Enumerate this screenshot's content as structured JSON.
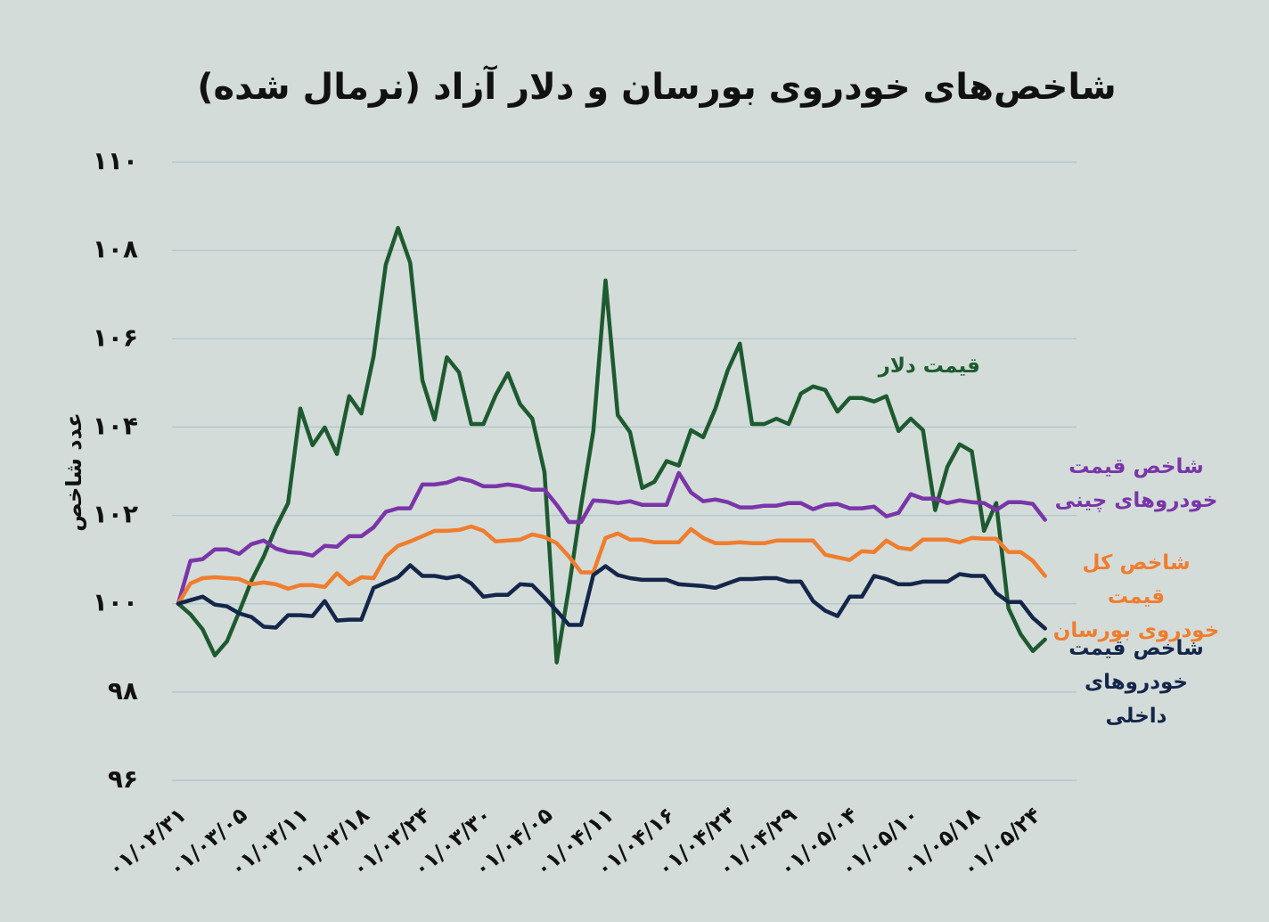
{
  "chart_data": {
    "type": "line",
    "title": "شاخص‌های خودروی بورسان و دلار آزاد (نرمال شده)",
    "y_label": "عدد شاخص",
    "ylim": [
      96,
      110
    ],
    "yticks": [
      {
        "value": 96,
        "label": "۹۶"
      },
      {
        "value": 98,
        "label": "۹۸"
      },
      {
        "value": 100,
        "label": "۱۰۰"
      },
      {
        "value": 102,
        "label": "۱۰۲"
      },
      {
        "value": 104,
        "label": "۱۰۴"
      },
      {
        "value": 106,
        "label": "۱۰۶"
      },
      {
        "value": 108,
        "label": "۱۰۸"
      },
      {
        "value": 110,
        "label": "۱۱۰"
      }
    ],
    "grid": true,
    "categories": [
      "۰۱/۰۲/۳۱",
      null,
      null,
      null,
      null,
      "۰۱/۰۳/۰۵",
      null,
      null,
      null,
      null,
      "۰۱/۰۳/۱۱",
      null,
      null,
      null,
      null,
      "۰۱/۰۳/۱۸",
      null,
      null,
      null,
      null,
      "۰۱/۰۳/۲۴",
      null,
      null,
      null,
      null,
      "۰۱/۰۳/۳۰",
      null,
      null,
      null,
      null,
      "۰۱/۰۴/۰۵",
      null,
      null,
      null,
      null,
      "۰۱/۰۴/۱۱",
      null,
      null,
      null,
      null,
      "۰۱/۰۴/۱۶",
      null,
      null,
      null,
      null,
      "۰۱/۰۴/۲۳",
      null,
      null,
      null,
      null,
      "۰۱/۰۴/۲۹",
      null,
      null,
      null,
      null,
      "۰۱/۰۵/۰۴",
      null,
      null,
      null,
      null,
      "۰۱/۰۵/۱۰",
      null,
      null,
      null,
      null,
      "۰۱/۰۵/۱۸",
      null,
      null,
      null,
      null,
      "۰۱/۰۵/۲۴",
      null
    ],
    "series": [
      {
        "name": "قیمت دلار",
        "color": "#1e5a30",
        "values": [
          100,
          99.76,
          99.42,
          98.83,
          99.15,
          99.82,
          100.52,
          101.07,
          101.73,
          102.28,
          104.42,
          103.59,
          103.99,
          103.39,
          104.7,
          104.31,
          105.6,
          107.68,
          108.51,
          107.72,
          105.06,
          104.17,
          105.58,
          105.24,
          104.07,
          104.07,
          104.72,
          105.22,
          104.52,
          104.19,
          102.98,
          98.67,
          100.36,
          102.22,
          103.91,
          107.32,
          104.27,
          103.89,
          102.62,
          102.76,
          103.23,
          103.13,
          103.93,
          103.77,
          104.42,
          105.28,
          105.89,
          104.07,
          104.07,
          104.19,
          104.07,
          104.76,
          104.92,
          104.84,
          104.35,
          104.66,
          104.66,
          104.58,
          104.7,
          103.91,
          104.19,
          103.93,
          102.12,
          103.1,
          103.61,
          103.45,
          101.65,
          102.28,
          99.9,
          99.31,
          98.93,
          99.19
        ]
      },
      {
        "name": "شاخص قیمت\nخودروهای چینی",
        "color": "#7a35a8",
        "values": [
          100,
          100.97,
          101.01,
          101.23,
          101.23,
          101.13,
          101.35,
          101.43,
          101.25,
          101.17,
          101.15,
          101.09,
          101.31,
          101.29,
          101.53,
          101.53,
          101.73,
          102.08,
          102.16,
          102.16,
          102.7,
          102.7,
          102.74,
          102.84,
          102.78,
          102.66,
          102.66,
          102.7,
          102.66,
          102.58,
          102.58,
          102.24,
          101.85,
          101.85,
          102.34,
          102.32,
          102.28,
          102.32,
          102.24,
          102.24,
          102.24,
          102.96,
          102.52,
          102.32,
          102.36,
          102.3,
          102.18,
          102.18,
          102.22,
          102.22,
          102.28,
          102.28,
          102.14,
          102.24,
          102.26,
          102.16,
          102.16,
          102.2,
          101.98,
          102.06,
          102.48,
          102.38,
          102.38,
          102.28,
          102.34,
          102.3,
          102.28,
          102.12,
          102.3,
          102.3,
          102.26,
          101.9
        ]
      },
      {
        "name": "شاخص کل قیمت\nخودروی بورسان",
        "color": "#f07d2e",
        "values": [
          100,
          100.46,
          100.58,
          100.6,
          100.58,
          100.56,
          100.44,
          100.48,
          100.44,
          100.34,
          100.42,
          100.42,
          100.38,
          100.69,
          100.44,
          100.6,
          100.58,
          101.07,
          101.31,
          101.41,
          101.53,
          101.65,
          101.65,
          101.67,
          101.75,
          101.65,
          101.41,
          101.43,
          101.45,
          101.57,
          101.51,
          101.37,
          101.07,
          100.71,
          100.71,
          101.49,
          101.59,
          101.45,
          101.45,
          101.39,
          101.39,
          101.39,
          101.69,
          101.49,
          101.37,
          101.37,
          101.39,
          101.37,
          101.37,
          101.43,
          101.43,
          101.43,
          101.43,
          101.11,
          101.05,
          100.99,
          101.19,
          101.17,
          101.43,
          101.27,
          101.23,
          101.45,
          101.45,
          101.45,
          101.39,
          101.49,
          101.47,
          101.47,
          101.17,
          101.17,
          100.97,
          100.63
        ]
      },
      {
        "name": "شاخص قیمت\nخودروهای داخلی",
        "color": "#14264a",
        "values": [
          100,
          100.08,
          100.16,
          99.98,
          99.94,
          99.78,
          99.7,
          99.48,
          99.46,
          99.74,
          99.74,
          99.72,
          100.06,
          99.62,
          99.64,
          99.64,
          100.36,
          100.48,
          100.6,
          100.87,
          100.63,
          100.63,
          100.58,
          100.63,
          100.46,
          100.16,
          100.2,
          100.2,
          100.44,
          100.42,
          100.14,
          99.84,
          99.52,
          99.52,
          100.65,
          100.85,
          100.65,
          100.58,
          100.54,
          100.54,
          100.54,
          100.44,
          100.42,
          100.4,
          100.36,
          100.46,
          100.56,
          100.56,
          100.58,
          100.58,
          100.5,
          100.5,
          100.06,
          99.84,
          99.72,
          100.16,
          100.16,
          100.63,
          100.56,
          100.44,
          100.44,
          100.5,
          100.5,
          100.5,
          100.67,
          100.63,
          100.63,
          100.24,
          100.04,
          100.04,
          99.68,
          99.44
        ]
      }
    ]
  }
}
